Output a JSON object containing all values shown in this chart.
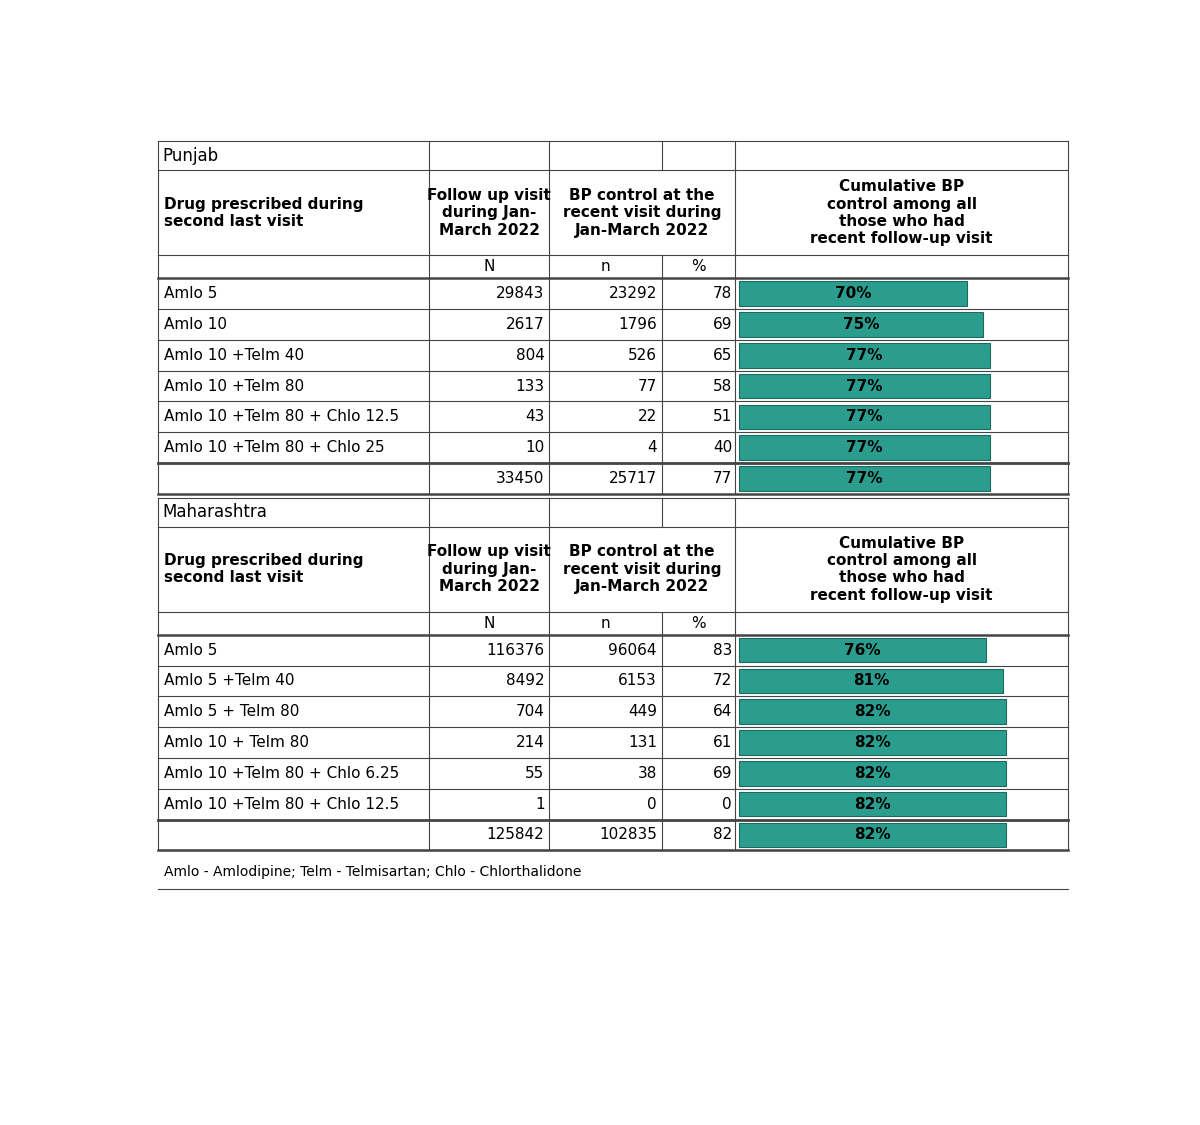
{
  "bg_color": "#ffffff",
  "teal_color": "#2a9d8f",
  "bar_text_color": "#000000",
  "bar_border_color": "#1a6b5e",
  "cell_text_color": "#000000",
  "border_color": "#555555",
  "punjab": {
    "section_label": "Punjab",
    "header1_col0": "Drug prescribed during\nsecond last visit",
    "header1_col1": "Follow up visit\nduring Jan-\nMarch 2022",
    "header1_col23": "BP control at the\nrecent visit during\nJan-March 2022",
    "header1_col4": "Cumulative BP\ncontrol among all\nthose who had\nrecent follow-up visit",
    "rows": [
      [
        "Amlo 5",
        "29843",
        "23292",
        "78",
        70
      ],
      [
        "Amlo 10",
        "2617",
        "1796",
        "69",
        75
      ],
      [
        "Amlo 10 +Telm 40",
        "804",
        "526",
        "65",
        77
      ],
      [
        "Amlo 10 +Telm 80",
        "133",
        "77",
        "58",
        77
      ],
      [
        "Amlo 10 +Telm 80 + Chlo 12.5",
        "43",
        "22",
        "51",
        77
      ],
      [
        "Amlo 10 +Telm 80 + Chlo 25",
        "10",
        "4",
        "40",
        77
      ]
    ],
    "total": [
      "",
      "33450",
      "25717",
      "77",
      77
    ]
  },
  "maharashtra": {
    "section_label": "Maharashtra",
    "header1_col0": "Drug prescribed during\nsecond last visit",
    "header1_col1": "Follow up visit\nduring Jan-\nMarch 2022",
    "header1_col23": "BP control at the\nrecent visit during\nJan-March 2022",
    "header1_col4": "Cumulative BP\ncontrol among all\nthose who had\nrecent follow-up visit",
    "rows": [
      [
        "Amlo 5",
        "116376",
        "96064",
        "83",
        76
      ],
      [
        "Amlo 5 +Telm 40",
        "8492",
        "6153",
        "72",
        81
      ],
      [
        "Amlo 5 + Telm 80",
        "704",
        "449",
        "64",
        82
      ],
      [
        "Amlo 10 + Telm 80",
        "214",
        "131",
        "61",
        82
      ],
      [
        "Amlo 10 +Telm 80 + Chlo 6.25",
        "55",
        "38",
        "69",
        82
      ],
      [
        "Amlo 10 +Telm 80 + Chlo 12.5",
        "1",
        "0",
        "0",
        82
      ]
    ],
    "total": [
      "",
      "125842",
      "102835",
      "82",
      82
    ]
  },
  "footnote": "Amlo - Amlodipine; Telm - Telmisartan; Chlo - Chlorthalidone"
}
